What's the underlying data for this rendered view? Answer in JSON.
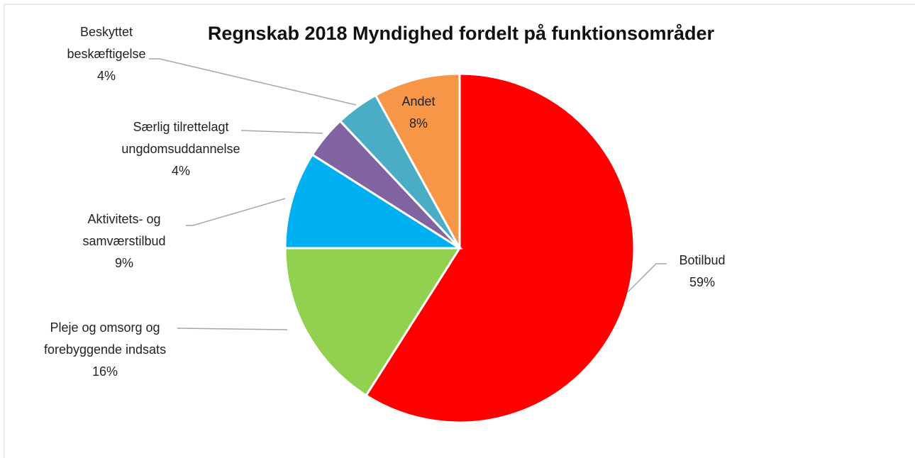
{
  "chart_data": {
    "type": "pie",
    "title": "Regnskab 2018 Myndighed fordelt på funktionsområder",
    "categories": [
      "Botilbud",
      "Pleje og omsorg og forebyggende indsats",
      "Aktivitets- og samværstilbud",
      "Særlig tilrettelagt ungdomsuddannelse",
      "Beskyttet beskæftigelse",
      "Andet"
    ],
    "values": [
      59,
      16,
      9,
      4,
      4,
      8
    ],
    "value_labels": [
      "59%",
      "16%",
      "9%",
      "4%",
      "4%",
      "8%"
    ],
    "colors": [
      "#ff0000",
      "#92d050",
      "#00b0f0",
      "#8064a2",
      "#4bacc6",
      "#f79646"
    ]
  }
}
